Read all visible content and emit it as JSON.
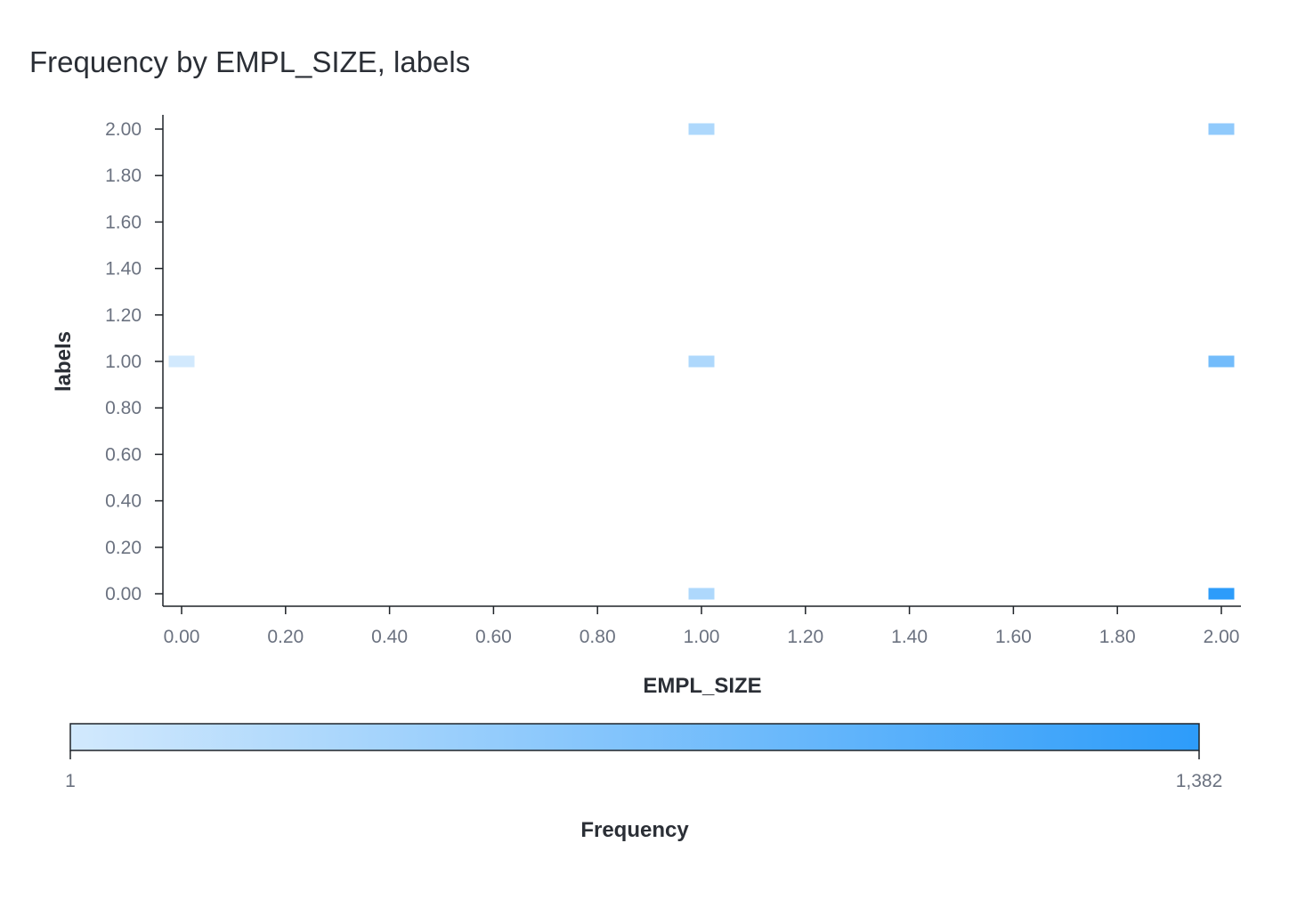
{
  "chart_data": {
    "type": "heatmap",
    "title": "Frequency by EMPL_SIZE, labels",
    "xlabel": "EMPL_SIZE",
    "ylabel": "labels",
    "xlim": [
      0,
      2
    ],
    "ylim": [
      0,
      2
    ],
    "x_ticks": [
      "0.00",
      "0.20",
      "0.40",
      "0.60",
      "0.80",
      "1.00",
      "1.20",
      "1.40",
      "1.60",
      "1.80",
      "2.00"
    ],
    "y_ticks": [
      "0.00",
      "0.20",
      "0.40",
      "0.60",
      "0.80",
      "1.00",
      "1.20",
      "1.40",
      "1.60",
      "1.80",
      "2.00"
    ],
    "cells": [
      {
        "x": 0,
        "y": 1,
        "frequency": 1
      },
      {
        "x": 1,
        "y": 0,
        "frequency": 300
      },
      {
        "x": 1,
        "y": 1,
        "frequency": 300
      },
      {
        "x": 1,
        "y": 2,
        "frequency": 300
      },
      {
        "x": 2,
        "y": 0,
        "frequency": 1382
      },
      {
        "x": 2,
        "y": 1,
        "frequency": 800
      },
      {
        "x": 2,
        "y": 2,
        "frequency": 550
      }
    ],
    "colorbar": {
      "title": "Frequency",
      "min": 1,
      "max": 1382,
      "min_label": "1",
      "max_label": "1,382",
      "color_low": "#d2e9fd",
      "color_high": "#2d9cfa"
    },
    "grid": false
  }
}
